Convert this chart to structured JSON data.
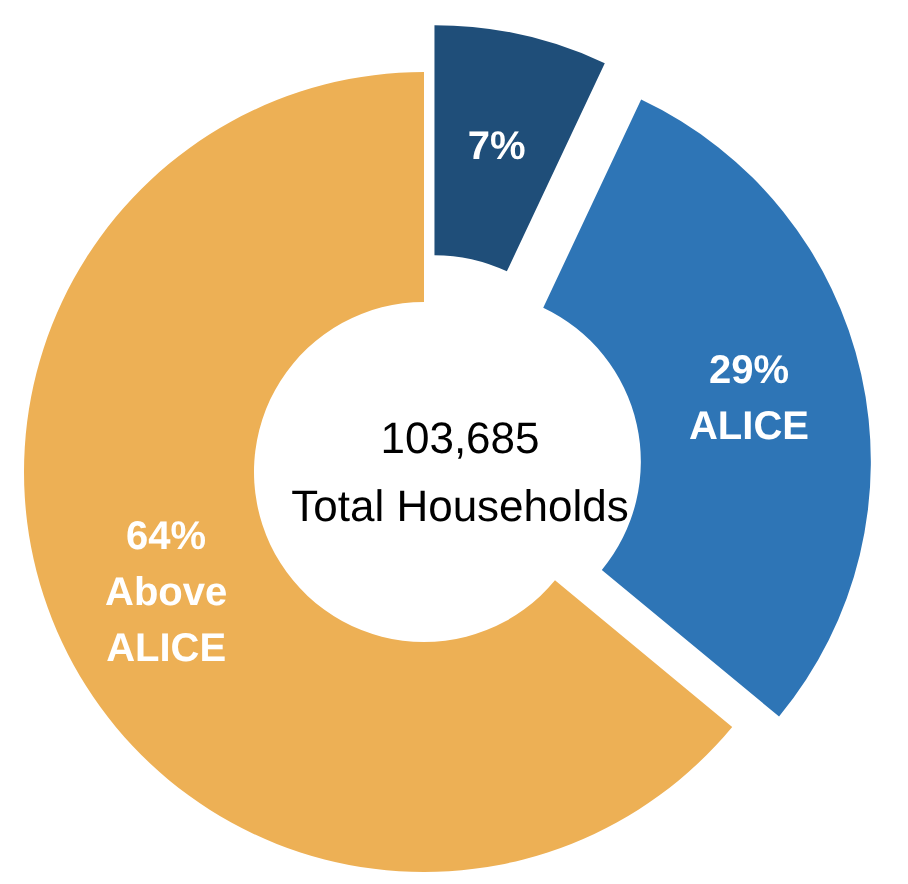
{
  "chart_data": {
    "type": "donut",
    "categories": [
      null,
      "ALICE",
      "Above ALICE"
    ],
    "values": [
      7,
      29,
      64
    ],
    "colors": [
      "#1f4e79",
      "#2e75b6",
      "#edb055"
    ],
    "value_labels": [
      "7%",
      "29%",
      "64%"
    ],
    "annotations": [
      "103,685",
      "Total Households"
    ]
  }
}
